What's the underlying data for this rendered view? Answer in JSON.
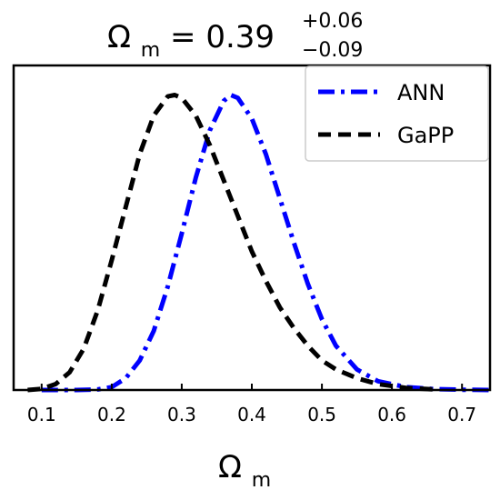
{
  "chart_data": {
    "type": "line",
    "title": {
      "base": "Ω",
      "sub": "m",
      "equals": " = 0.39",
      "sup": "+0.06",
      "inf": "−0.09"
    },
    "xlabel": {
      "base": "Ω",
      "sub": "m"
    },
    "ylabel": "",
    "xlim": [
      0.06,
      0.74
    ],
    "ylim": [
      0,
      1.1
    ],
    "grid": false,
    "legend_position": "top-right",
    "xticks": [
      "0.1",
      "0.2",
      "0.3",
      "0.4",
      "0.5",
      "0.6",
      "0.7"
    ],
    "series": [
      {
        "name": "ANN",
        "color": "#0000ff",
        "style": "dashdot",
        "x": [
          0.1,
          0.15,
          0.18,
          0.2,
          0.22,
          0.24,
          0.26,
          0.28,
          0.3,
          0.32,
          0.34,
          0.36,
          0.37,
          0.38,
          0.4,
          0.42,
          0.44,
          0.46,
          0.48,
          0.5,
          0.52,
          0.55,
          0.58,
          0.62,
          0.66,
          0.7,
          0.74
        ],
        "y": [
          0.0,
          0.0,
          0.002,
          0.01,
          0.04,
          0.1,
          0.2,
          0.35,
          0.53,
          0.72,
          0.88,
          0.98,
          1.0,
          0.99,
          0.92,
          0.8,
          0.65,
          0.5,
          0.36,
          0.24,
          0.15,
          0.07,
          0.03,
          0.01,
          0.003,
          0.001,
          0.0
        ]
      },
      {
        "name": "GaPP",
        "color": "#000000",
        "style": "dashed",
        "x": [
          0.08,
          0.1,
          0.12,
          0.14,
          0.16,
          0.18,
          0.2,
          0.22,
          0.24,
          0.26,
          0.28,
          0.29,
          0.3,
          0.32,
          0.34,
          0.36,
          0.38,
          0.4,
          0.42,
          0.44,
          0.46,
          0.48,
          0.5,
          0.52,
          0.55,
          0.58,
          0.62,
          0.66
        ],
        "y": [
          0.0,
          0.004,
          0.02,
          0.06,
          0.14,
          0.27,
          0.44,
          0.62,
          0.8,
          0.93,
          0.995,
          1.0,
          0.99,
          0.93,
          0.83,
          0.71,
          0.59,
          0.47,
          0.37,
          0.28,
          0.21,
          0.15,
          0.1,
          0.07,
          0.04,
          0.02,
          0.007,
          0.002
        ]
      }
    ]
  }
}
